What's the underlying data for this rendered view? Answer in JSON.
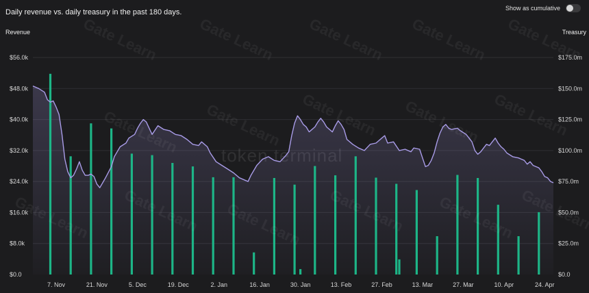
{
  "title": "Daily revenue vs. daily treasury in the past 180 days.",
  "toggle": {
    "label": "Show as cumulative",
    "on": false
  },
  "axes": {
    "left_title": "Revenue",
    "right_title": "Treasury"
  },
  "watermarks": {
    "brand": "token terminal",
    "overlay": "Gate Learn"
  },
  "colors": {
    "bar": "#1db587",
    "line": "#a99ce8",
    "area": "#a99ce8",
    "grid": "#2f2f33"
  },
  "chart_data": {
    "type": "bar+line",
    "x_ticks": [
      "7. Nov",
      "21. Nov",
      "5. Dec",
      "19. Dec",
      "2. Jan",
      "16. Jan",
      "30. Jan",
      "13. Feb",
      "27. Feb",
      "13. Mar",
      "27. Mar",
      "10. Apr",
      "24. Apr"
    ],
    "y_left_ticks": [
      "$0.0",
      "$8.0k",
      "$16.0k",
      "$24.0k",
      "$32.0k",
      "$40.0k",
      "$48.0k",
      "$56.0k"
    ],
    "y_right_ticks": [
      "$0.0",
      "$25.0m",
      "$50.0m",
      "$75.0m",
      "$100.0m",
      "$125.0m",
      "$150.0m",
      "$175.0m"
    ],
    "y_left_range": [
      0,
      56000
    ],
    "y_right_range": [
      0,
      175000000
    ],
    "x_range": [
      0,
      179
    ],
    "tick_days": [
      8,
      22,
      36,
      50,
      64,
      78,
      92,
      106,
      120,
      134,
      148,
      162,
      176
    ],
    "bars": {
      "axis": "left",
      "points": [
        [
          6,
          51800
        ],
        [
          13,
          30500
        ],
        [
          20,
          39000
        ],
        [
          27,
          37700
        ],
        [
          34,
          31200
        ],
        [
          41,
          30800
        ],
        [
          48,
          28800
        ],
        [
          55,
          27900
        ],
        [
          62,
          25100
        ],
        [
          69,
          25100
        ],
        [
          76,
          5700
        ],
        [
          83,
          24900
        ],
        [
          90,
          23200
        ],
        [
          92,
          1400
        ],
        [
          97,
          28000
        ],
        [
          104,
          25600
        ],
        [
          111,
          30500
        ],
        [
          118,
          25000
        ],
        [
          125,
          23400
        ],
        [
          126,
          3900
        ],
        [
          132,
          21800
        ],
        [
          139,
          9900
        ],
        [
          146,
          25700
        ],
        [
          153,
          24900
        ],
        [
          160,
          18000
        ],
        [
          167,
          9900
        ],
        [
          174,
          16100
        ]
      ]
    },
    "line": {
      "axis": "right",
      "points": [
        [
          0,
          152
        ],
        [
          2,
          150
        ],
        [
          4,
          147
        ],
        [
          5,
          141
        ],
        [
          6,
          139
        ],
        [
          7,
          140
        ],
        [
          8,
          135
        ],
        [
          9,
          129
        ],
        [
          10,
          113
        ],
        [
          11,
          93
        ],
        [
          12,
          83
        ],
        [
          13,
          78
        ],
        [
          14,
          80
        ],
        [
          15,
          85
        ],
        [
          16,
          91
        ],
        [
          17,
          84
        ],
        [
          18,
          80
        ],
        [
          19,
          80
        ],
        [
          20,
          81
        ],
        [
          21,
          79
        ],
        [
          22,
          73
        ],
        [
          23,
          70
        ],
        [
          24,
          74
        ],
        [
          25,
          78
        ],
        [
          27,
          87
        ],
        [
          28,
          95
        ],
        [
          29,
          99
        ],
        [
          30,
          103
        ],
        [
          32,
          106
        ],
        [
          33,
          110
        ],
        [
          35,
          113
        ],
        [
          36,
          118
        ],
        [
          37,
          122
        ],
        [
          38,
          125
        ],
        [
          39,
          123
        ],
        [
          40,
          118
        ],
        [
          41,
          113
        ],
        [
          43,
          120
        ],
        [
          45,
          117
        ],
        [
          47,
          116
        ],
        [
          49,
          113
        ],
        [
          51,
          112
        ],
        [
          53,
          109
        ],
        [
          55,
          105
        ],
        [
          57,
          104
        ],
        [
          58,
          107
        ],
        [
          60,
          103
        ],
        [
          61,
          98
        ],
        [
          63,
          91
        ],
        [
          65,
          88
        ],
        [
          67,
          85
        ],
        [
          69,
          82
        ],
        [
          71,
          78
        ],
        [
          73,
          76
        ],
        [
          74,
          75
        ],
        [
          75,
          80
        ],
        [
          77,
          88
        ],
        [
          79,
          93
        ],
        [
          81,
          95
        ],
        [
          83,
          92
        ],
        [
          85,
          91
        ],
        [
          87,
          96
        ],
        [
          88,
          99
        ],
        [
          89,
          112
        ],
        [
          90,
          122
        ],
        [
          91,
          128
        ],
        [
          92,
          125
        ],
        [
          93,
          121
        ],
        [
          94,
          119
        ],
        [
          95,
          115
        ],
        [
          97,
          119
        ],
        [
          98,
          123
        ],
        [
          99,
          126
        ],
        [
          100,
          123
        ],
        [
          101,
          119
        ],
        [
          103,
          115
        ],
        [
          104,
          120
        ],
        [
          105,
          124
        ],
        [
          106,
          121
        ],
        [
          107,
          117
        ],
        [
          108,
          109
        ],
        [
          110,
          105
        ],
        [
          112,
          102
        ],
        [
          114,
          100
        ],
        [
          116,
          105
        ],
        [
          118,
          106
        ],
        [
          120,
          110
        ],
        [
          121,
          112
        ],
        [
          122,
          106
        ],
        [
          124,
          107
        ],
        [
          126,
          100
        ],
        [
          128,
          101
        ],
        [
          130,
          99
        ],
        [
          131,
          102
        ],
        [
          133,
          101
        ],
        [
          134,
          94
        ],
        [
          135,
          87
        ],
        [
          136,
          88
        ],
        [
          137,
          92
        ],
        [
          138,
          98
        ],
        [
          139,
          107
        ],
        [
          140,
          114
        ],
        [
          141,
          119
        ],
        [
          142,
          121
        ],
        [
          143,
          118
        ],
        [
          144,
          117
        ],
        [
          146,
          118
        ],
        [
          147,
          116
        ],
        [
          149,
          113
        ],
        [
          150,
          110
        ],
        [
          151,
          107
        ],
        [
          152,
          100
        ],
        [
          153,
          97
        ],
        [
          154,
          99
        ],
        [
          155,
          102
        ],
        [
          156,
          105
        ],
        [
          157,
          104
        ],
        [
          158,
          107
        ],
        [
          159,
          110
        ],
        [
          160,
          106
        ],
        [
          161,
          103
        ],
        [
          162,
          101
        ],
        [
          163,
          98
        ],
        [
          165,
          95
        ],
        [
          167,
          94
        ],
        [
          169,
          92
        ],
        [
          170,
          89
        ],
        [
          171,
          91
        ],
        [
          172,
          88
        ],
        [
          173,
          87
        ],
        [
          174,
          86
        ],
        [
          175,
          83
        ],
        [
          176,
          79
        ],
        [
          177,
          78
        ],
        [
          178,
          75
        ],
        [
          179,
          74
        ]
      ],
      "unit": "million USD"
    },
    "grid": true,
    "legend": "none"
  }
}
